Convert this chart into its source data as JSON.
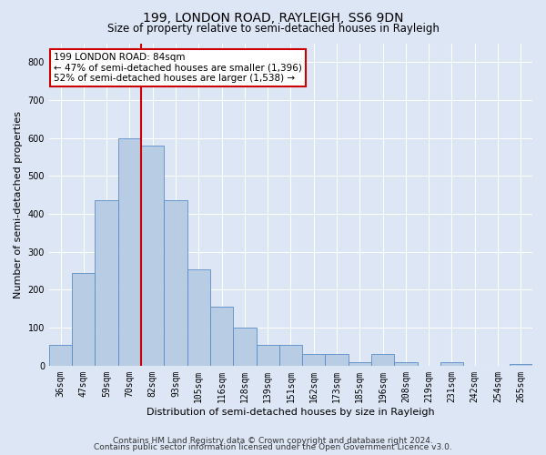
{
  "title": "199, LONDON ROAD, RAYLEIGH, SS6 9DN",
  "subtitle": "Size of property relative to semi-detached houses in Rayleigh",
  "xlabel": "Distribution of semi-detached houses by size in Rayleigh",
  "ylabel": "Number of semi-detached properties",
  "categories": [
    "36sqm",
    "47sqm",
    "59sqm",
    "70sqm",
    "82sqm",
    "93sqm",
    "105sqm",
    "116sqm",
    "128sqm",
    "139sqm",
    "151sqm",
    "162sqm",
    "173sqm",
    "185sqm",
    "196sqm",
    "208sqm",
    "219sqm",
    "231sqm",
    "242sqm",
    "254sqm",
    "265sqm"
  ],
  "values": [
    55,
    245,
    435,
    600,
    580,
    435,
    255,
    155,
    100,
    55,
    55,
    30,
    30,
    10,
    30,
    10,
    0,
    10,
    0,
    0,
    5
  ],
  "bar_color": "#b8cce4",
  "bar_edge_color": "#5b8cc8",
  "red_line_color": "#cc0000",
  "annotation_text": "199 LONDON ROAD: 84sqm\n← 47% of semi-detached houses are smaller (1,396)\n52% of semi-detached houses are larger (1,538) →",
  "annotation_box_color": "#ffffff",
  "annotation_box_edge": "#cc0000",
  "footer_line1": "Contains HM Land Registry data © Crown copyright and database right 2024.",
  "footer_line2": "Contains public sector information licensed under the Open Government Licence v3.0.",
  "ylim": [
    0,
    850
  ],
  "yticks": [
    0,
    100,
    200,
    300,
    400,
    500,
    600,
    700,
    800
  ],
  "background_color": "#dce6f5",
  "plot_bg_color": "#dce6f5",
  "grid_color": "#ffffff",
  "title_fontsize": 10,
  "subtitle_fontsize": 8.5,
  "axis_label_fontsize": 8,
  "tick_fontsize": 7,
  "footer_fontsize": 6.5,
  "red_line_x": 3.5
}
